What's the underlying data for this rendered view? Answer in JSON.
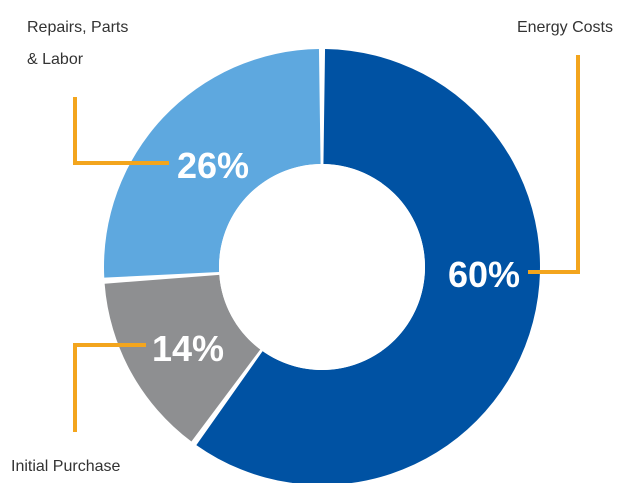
{
  "chart_data": {
    "type": "pie",
    "variant": "donut",
    "title": "",
    "slices": [
      {
        "label": "Energy Costs",
        "value": 60,
        "display": "60%",
        "color": "#0052a3"
      },
      {
        "label": "Initial Purchase",
        "value": 14,
        "display": "14%",
        "color": "#8e8f91"
      },
      {
        "label": "Repairs, Parts & Labor",
        "label_lines": [
          "Repairs, Parts",
          "& Labor"
        ],
        "value": 26,
        "display": "26%",
        "color": "#5ea8df"
      }
    ],
    "leader_color": "#f3a51d",
    "legend": "callouts"
  }
}
